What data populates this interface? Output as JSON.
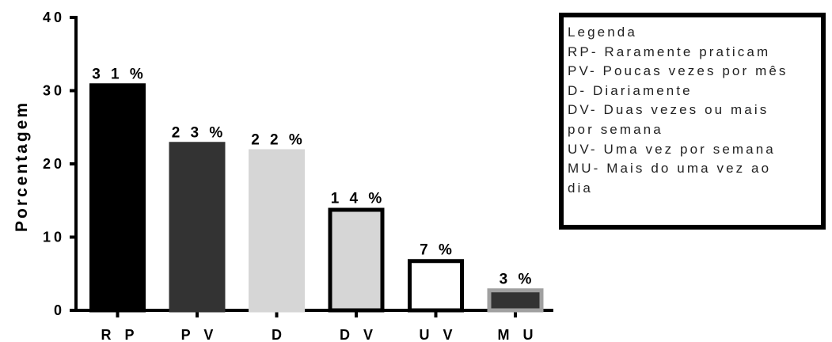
{
  "chart_data": {
    "type": "bar",
    "ylabel": "Porcentagem",
    "xlabel": "",
    "ylim": [
      0,
      40
    ],
    "yticks": [
      0,
      10,
      20,
      30,
      40
    ],
    "categories": [
      "R P",
      "P V",
      "D",
      "D V",
      "U V",
      "M U"
    ],
    "values": [
      31,
      23,
      22,
      14,
      7,
      3
    ],
    "value_labels": [
      "3 1 %",
      "2 3 %",
      "2 2 %",
      "1 4 %",
      "7 %",
      "3 %"
    ],
    "bar_styles": [
      {
        "fill": "#000000",
        "stroke": "#000000"
      },
      {
        "fill": "#333333",
        "stroke": "#333333"
      },
      {
        "fill": "#d6d6d6",
        "stroke": "#d6d6d6"
      },
      {
        "fill": "#d6d6d6",
        "stroke": "#000000"
      },
      {
        "fill": "#ffffff",
        "stroke": "#000000"
      },
      {
        "fill": "#333333",
        "stroke": "#a0a0a0"
      }
    ],
    "grid": false,
    "legend_position": "top-right",
    "legend_lines": [
      "Legenda",
      "RP- Raramente praticam",
      "PV- Poucas vezes por mês",
      "D- Diariamente",
      "DV- Duas vezes ou mais",
      "por semana",
      "UV- Uma vez por semana",
      "MU- Mais do uma vez ao",
      "dia"
    ]
  }
}
